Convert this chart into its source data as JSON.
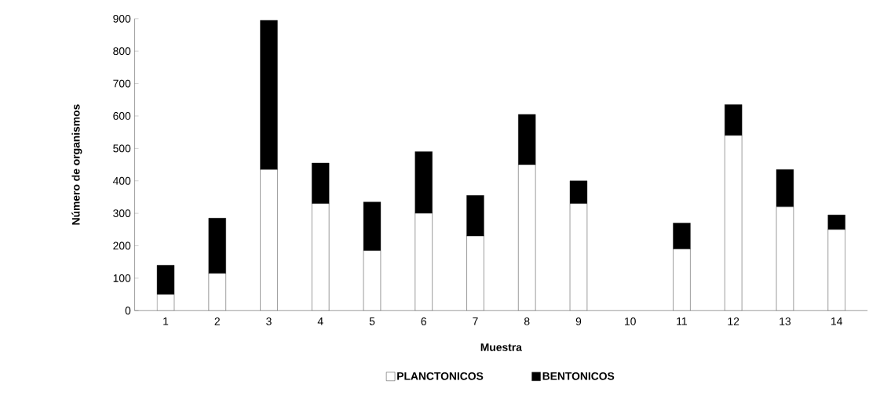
{
  "chart_data": {
    "type": "bar",
    "stacked": true,
    "xlabel": "Muestra",
    "ylabel": "Número de organismos",
    "categories": [
      "1",
      "2",
      "3",
      "4",
      "5",
      "6",
      "7",
      "8",
      "9",
      "10",
      "11",
      "12",
      "13",
      "14"
    ],
    "series": [
      {
        "name": "PLANCTONICOS",
        "color": "#ffffff",
        "values": [
          50,
          115,
          435,
          330,
          185,
          300,
          230,
          450,
          330,
          0,
          190,
          540,
          320,
          250
        ]
      },
      {
        "name": "BENTONICOS",
        "color": "#000000",
        "values": [
          90,
          170,
          460,
          125,
          150,
          190,
          125,
          155,
          70,
          0,
          80,
          95,
          115,
          45
        ]
      }
    ],
    "ylim": [
      0,
      900
    ],
    "yticks": [
      0,
      100,
      200,
      300,
      400,
      500,
      600,
      700,
      800,
      900
    ],
    "legend": "bottom"
  }
}
